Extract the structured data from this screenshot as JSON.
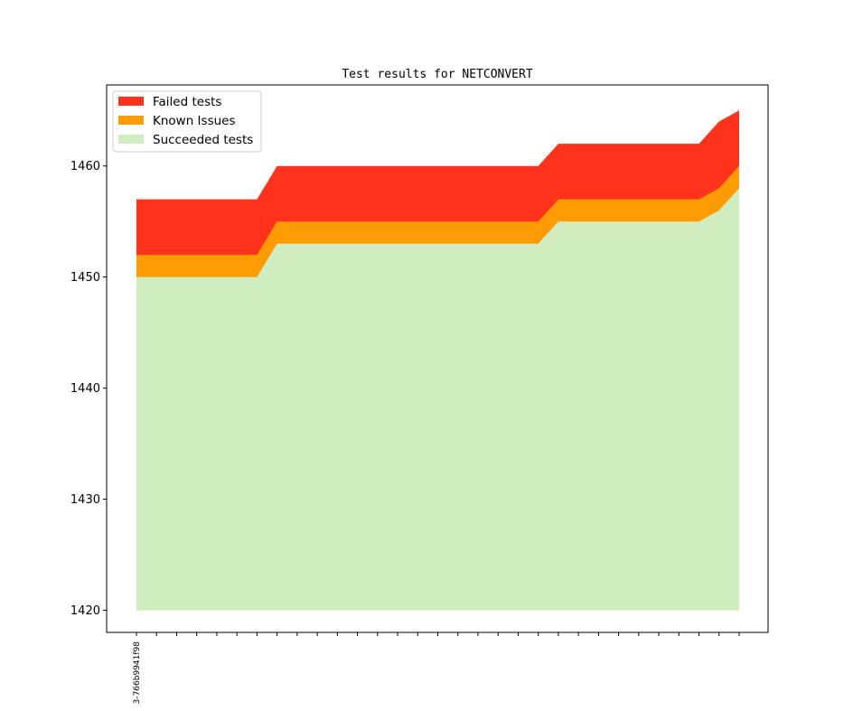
{
  "chart_data": {
    "type": "area",
    "title": "Test results for NETCONVERT",
    "xlabel": "",
    "ylabel": "",
    "ylim": [
      1418,
      1467.3
    ],
    "yticks": [
      1420,
      1430,
      1440,
      1450,
      1460
    ],
    "xtick_count": 31,
    "xtick_labels": [
      "3-766b9941f98"
    ],
    "legend": {
      "position": "top-left",
      "entries": [
        "Failed tests",
        "Known Issues",
        "Succeeded tests"
      ]
    },
    "grid": false,
    "baseline": 1420,
    "x": [
      0,
      1,
      2,
      3,
      4,
      5,
      6,
      7,
      8,
      9,
      10,
      11,
      12,
      13,
      14,
      15,
      16,
      17,
      18,
      19,
      20,
      21,
      22,
      23,
      24,
      25,
      26,
      27,
      28,
      29,
      30
    ],
    "series": [
      {
        "name": "Succeeded tests",
        "color": "#cfedbf",
        "values": [
          1450,
          1450,
          1450,
          1450,
          1450,
          1450,
          1450,
          1453,
          1453,
          1453,
          1453,
          1453,
          1453,
          1453,
          1453,
          1453,
          1453,
          1453,
          1453,
          1453,
          1453,
          1455,
          1455,
          1455,
          1455,
          1455,
          1455,
          1455,
          1455,
          1456,
          1458
        ]
      },
      {
        "name": "Known Issues",
        "color": "#ff9b05",
        "values": [
          1452,
          1452,
          1452,
          1452,
          1452,
          1452,
          1452,
          1455,
          1455,
          1455,
          1455,
          1455,
          1455,
          1455,
          1455,
          1455,
          1455,
          1455,
          1455,
          1455,
          1455,
          1457,
          1457,
          1457,
          1457,
          1457,
          1457,
          1457,
          1457,
          1458,
          1460
        ]
      },
      {
        "name": "Failed tests",
        "color": "#ff331c",
        "values": [
          1457,
          1457,
          1457,
          1457,
          1457,
          1457,
          1457,
          1460,
          1460,
          1460,
          1460,
          1460,
          1460,
          1460,
          1460,
          1460,
          1460,
          1460,
          1460,
          1460,
          1460,
          1462,
          1462,
          1462,
          1462,
          1462,
          1462,
          1462,
          1462,
          1464,
          1465
        ]
      }
    ]
  }
}
